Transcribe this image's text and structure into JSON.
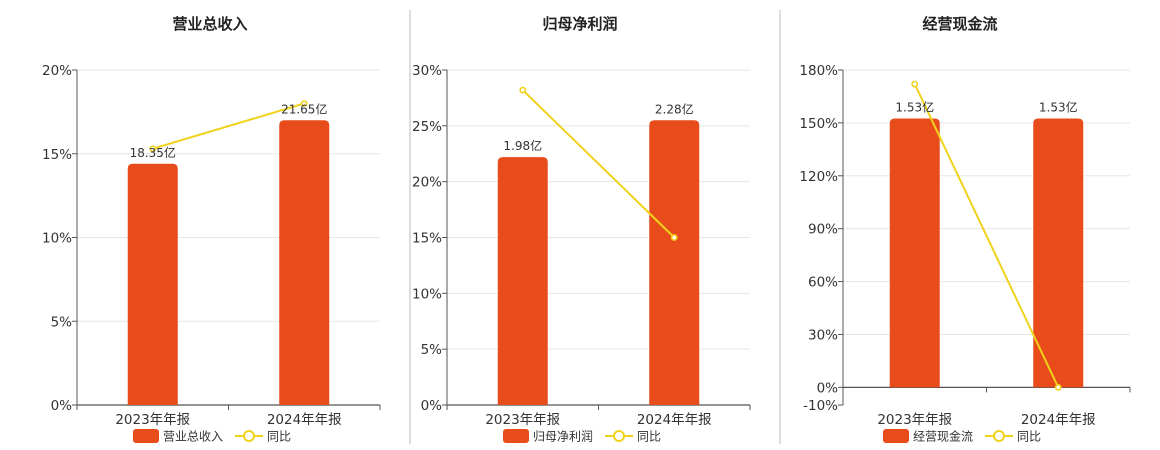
{
  "colors": {
    "bar": "#e84c1a",
    "line": "#f0d21b",
    "grid": "#e6e6e6",
    "axis": "#555555",
    "divider": "#bbbbbb"
  },
  "legend": {
    "line_label": "同比"
  },
  "chart_data": [
    {
      "type": "bar",
      "title": "营业总收入",
      "categories": [
        "2023年年报",
        "2024年年报"
      ],
      "series": [
        {
          "name": "营业总收入",
          "type": "bar",
          "values": [
            14.4,
            17.0
          ],
          "labels": [
            "18.35亿",
            "21.65亿"
          ]
        },
        {
          "name": "同比",
          "type": "line",
          "values": [
            15.3,
            18.0
          ]
        }
      ],
      "yticks": [
        "0%",
        "5%",
        "10%",
        "15%",
        "20%"
      ],
      "ylim": [
        0,
        20
      ],
      "grid": true,
      "legend": "bottom"
    },
    {
      "type": "bar",
      "title": "归母净利润",
      "categories": [
        "2023年年报",
        "2024年年报"
      ],
      "series": [
        {
          "name": "归母净利润",
          "type": "bar",
          "values": [
            22.2,
            25.5
          ],
          "labels": [
            "1.98亿",
            "2.28亿"
          ]
        },
        {
          "name": "同比",
          "type": "line",
          "values": [
            28.2,
            15.0
          ]
        }
      ],
      "yticks": [
        "0%",
        "5%",
        "10%",
        "15%",
        "20%",
        "25%",
        "30%"
      ],
      "ylim": [
        0,
        30
      ],
      "grid": true,
      "legend": "bottom"
    },
    {
      "type": "bar",
      "title": "经营现金流",
      "categories": [
        "2023年年报",
        "2024年年报"
      ],
      "series": [
        {
          "name": "经营现金流",
          "type": "bar",
          "values": [
            152.5,
            152.5
          ],
          "labels": [
            "1.53亿",
            "1.53亿"
          ]
        },
        {
          "name": "同比",
          "type": "line",
          "values": [
            172,
            0
          ]
        }
      ],
      "yticks": [
        "-10%",
        "0%",
        "30%",
        "60%",
        "90%",
        "120%",
        "150%",
        "180%"
      ],
      "ylim": [
        -10,
        180
      ],
      "grid": true,
      "legend": "bottom"
    }
  ]
}
